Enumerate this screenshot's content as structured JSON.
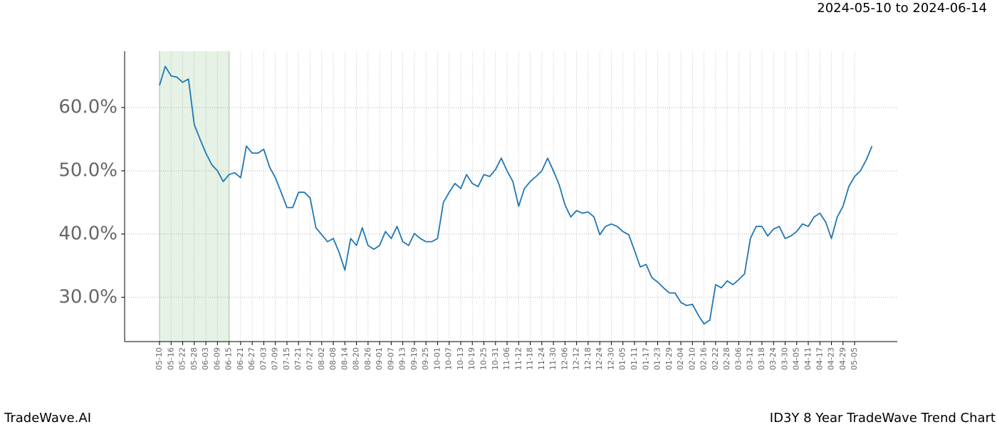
{
  "chart_data": {
    "type": "line",
    "subtitle": "2024-05-10 to 2024-06-14",
    "footer_left": "TradeWave.AI",
    "footer_right": "ID3Y 8 Year TradeWave Trend Chart",
    "categories": [
      "05-10",
      null,
      "05-16",
      null,
      "05-22",
      null,
      "05-28",
      null,
      "06-03",
      null,
      "06-09",
      null,
      "06-15",
      null,
      "06-21",
      null,
      "06-27",
      null,
      "07-03",
      null,
      "07-09",
      null,
      "07-15",
      null,
      "07-21",
      null,
      "07-27",
      null,
      "08-02",
      null,
      "08-08",
      null,
      "08-14",
      null,
      "08-20",
      null,
      "08-26",
      null,
      "09-01",
      null,
      "09-07",
      null,
      "09-13",
      null,
      "09-19",
      null,
      "09-25",
      null,
      "10-01",
      null,
      "10-07",
      null,
      "10-13",
      null,
      "10-19",
      null,
      "10-25",
      null,
      "10-31",
      null,
      "11-06",
      null,
      "11-12",
      null,
      "11-18",
      null,
      "11-24",
      null,
      "11-30",
      null,
      "12-06",
      null,
      "12-12",
      null,
      "12-18",
      null,
      "12-24",
      null,
      "12-30",
      null,
      "01-05",
      null,
      "01-11",
      null,
      "01-17",
      null,
      "01-23",
      null,
      "01-29",
      null,
      "02-04",
      null,
      "02-10",
      null,
      "02-16",
      null,
      "02-22",
      null,
      "02-28",
      null,
      "03-06",
      null,
      "03-12",
      null,
      "03-18",
      null,
      "03-24",
      null,
      "03-30",
      null,
      "04-05",
      null,
      "04-11",
      null,
      "04-17",
      null,
      "04-23",
      null,
      "04-29",
      null,
      "05-05",
      null,
      null,
      null
    ],
    "values": [
      63.5,
      66.5,
      65,
      64.8,
      64,
      64.5,
      57.3,
      55,
      52.8,
      51,
      50,
      48.3,
      49.4,
      49.7,
      48.9,
      53.9,
      52.8,
      52.8,
      53.4,
      50.6,
      48.9,
      46.6,
      44.2,
      44.2,
      46.6,
      46.6,
      45.7,
      41,
      39.9,
      38.8,
      39.3,
      37.1,
      34.3,
      39.3,
      38.2,
      41,
      38.2,
      37.6,
      38.2,
      40.4,
      39.3,
      41.2,
      38.8,
      38.2,
      40.1,
      39.3,
      38.8,
      38.8,
      39.3,
      45,
      46.6,
      48,
      47.2,
      49.4,
      48,
      47.5,
      49.4,
      49.1,
      50.2,
      52,
      50,
      48.3,
      44.4,
      47.2,
      48.3,
      49.1,
      50,
      52,
      50,
      47.8,
      44.6,
      42.7,
      43.7,
      43.3,
      43.5,
      42.7,
      39.9,
      41.2,
      41.6,
      41.2,
      40.4,
      39.9,
      37.4,
      34.8,
      35.2,
      33.1,
      32.4,
      31.5,
      30.7,
      30.7,
      29.2,
      28.7,
      28.9,
      27.2,
      25.8,
      26.4,
      32,
      31.5,
      32.6,
      32,
      32.8,
      33.7,
      39.3,
      41.2,
      41.2,
      39.7,
      40.8,
      41.2,
      39.3,
      39.7,
      40.4,
      41.6,
      41.2,
      42.7,
      43.3,
      41.9,
      39.3,
      42.7,
      44.4,
      47.5,
      49.1,
      50,
      51.7,
      53.9
    ],
    "color": "#1f77b4",
    "highlight": [
      "05-10",
      "06-15"
    ],
    "highlight_color": "#e5f2e5",
    "ylim": [
      23.0,
      68.9
    ],
    "yticks": [
      {
        "value": 30,
        "label": "30.0%"
      },
      {
        "value": 40,
        "label": "40.0%"
      },
      {
        "value": 50,
        "label": "50.0%"
      },
      {
        "value": 60,
        "label": "60.0%"
      }
    ],
    "grid": true
  }
}
